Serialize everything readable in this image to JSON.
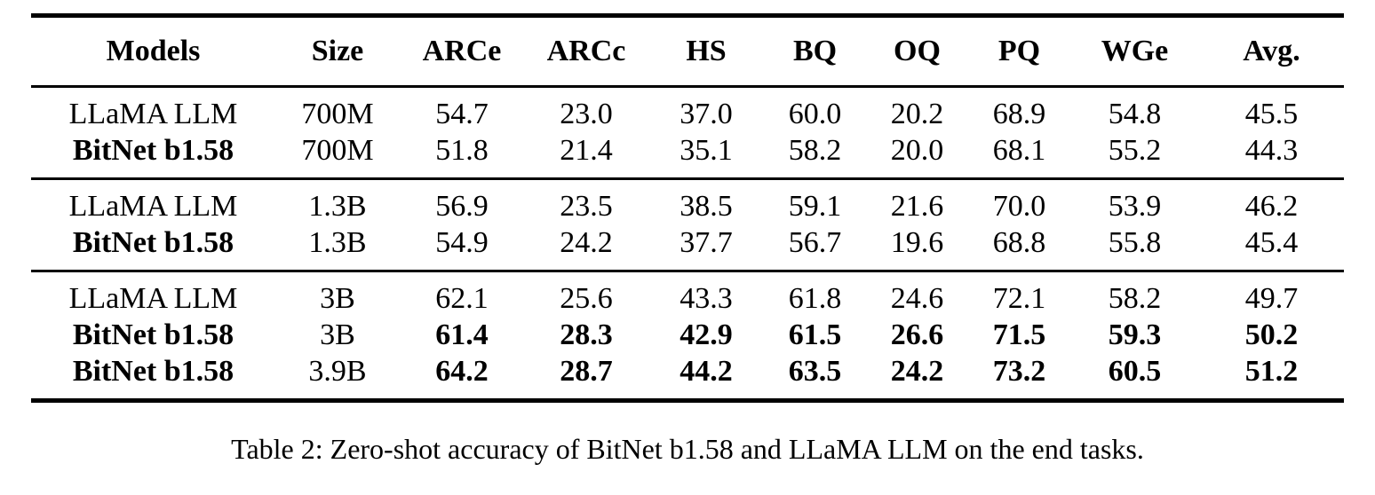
{
  "page": {
    "background_color": "#ffffff",
    "text_color": "#000000"
  },
  "table": {
    "columns": [
      "Models",
      "Size",
      "ARCe",
      "ARCc",
      "HS",
      "BQ",
      "OQ",
      "PQ",
      "WGe",
      "Avg."
    ],
    "groups": [
      {
        "size_group": "700M",
        "rows": [
          {
            "model": "LLaMA LLM",
            "model_bold": false,
            "size": "700M",
            "values": [
              "54.7",
              "23.0",
              "37.0",
              "60.0",
              "20.2",
              "68.9",
              "54.8",
              "45.5"
            ],
            "values_bold": false
          },
          {
            "model": "BitNet b1.58",
            "model_bold": true,
            "size": "700M",
            "values": [
              "51.8",
              "21.4",
              "35.1",
              "58.2",
              "20.0",
              "68.1",
              "55.2",
              "44.3"
            ],
            "values_bold": false
          }
        ]
      },
      {
        "size_group": "1.3B",
        "rows": [
          {
            "model": "LLaMA LLM",
            "model_bold": false,
            "size": "1.3B",
            "values": [
              "56.9",
              "23.5",
              "38.5",
              "59.1",
              "21.6",
              "70.0",
              "53.9",
              "46.2"
            ],
            "values_bold": false
          },
          {
            "model": "BitNet b1.58",
            "model_bold": true,
            "size": "1.3B",
            "values": [
              "54.9",
              "24.2",
              "37.7",
              "56.7",
              "19.6",
              "68.8",
              "55.8",
              "45.4"
            ],
            "values_bold": false
          }
        ]
      },
      {
        "size_group": "3B",
        "rows": [
          {
            "model": "LLaMA LLM",
            "model_bold": false,
            "size": "3B",
            "values": [
              "62.1",
              "25.6",
              "43.3",
              "61.8",
              "24.6",
              "72.1",
              "58.2",
              "49.7"
            ],
            "values_bold": false
          },
          {
            "model": "BitNet b1.58",
            "model_bold": true,
            "size": "3B",
            "values": [
              "61.4",
              "28.3",
              "42.9",
              "61.5",
              "26.6",
              "71.5",
              "59.3",
              "50.2"
            ],
            "values_bold": true
          },
          {
            "model": "BitNet b1.58",
            "model_bold": true,
            "size": "3.9B",
            "values": [
              "64.2",
              "28.7",
              "44.2",
              "63.5",
              "24.2",
              "73.2",
              "60.5",
              "51.2"
            ],
            "values_bold": true
          }
        ]
      }
    ],
    "caption": "Table 2: Zero-shot accuracy of BitNet b1.58 and LLaMA LLM on the end tasks."
  }
}
